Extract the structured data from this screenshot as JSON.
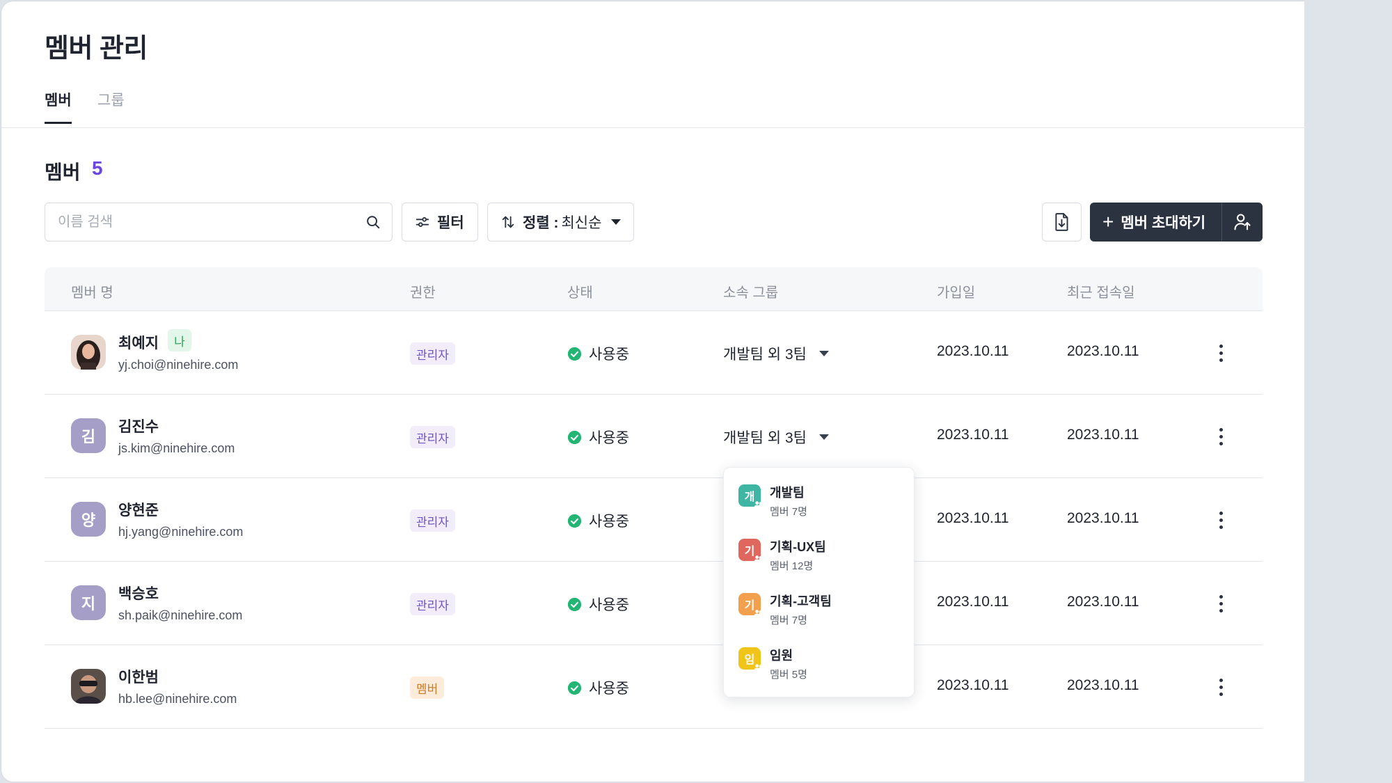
{
  "page": {
    "title": "멤버 관리"
  },
  "tabs": [
    {
      "label": "멤버",
      "active": true
    },
    {
      "label": "그룹",
      "active": false
    }
  ],
  "section": {
    "title": "멤버",
    "count": "5"
  },
  "toolbar": {
    "search_placeholder": "이름 검색",
    "filter_label": "필터",
    "sort_label": "정렬 :",
    "sort_value": "최신순",
    "invite_label": "멤버 초대하기"
  },
  "table": {
    "headers": [
      "멤버 명",
      "권한",
      "상태",
      "소속 그룹",
      "가입일",
      "최근 접속일"
    ],
    "rows": [
      {
        "name": "최예지",
        "badge": "나",
        "email": "yj.choi@ninehire.com",
        "avatar": "photo",
        "role": "관리자",
        "role_type": "admin",
        "status": "사용중",
        "group": "개발팀 외 3팀",
        "joined": "2023.10.11",
        "last_login": "2023.10.11"
      },
      {
        "name": "김진수",
        "email": "js.kim@ninehire.com",
        "avatar": "김",
        "role": "관리자",
        "role_type": "admin",
        "status": "사용중",
        "group": "개발팀 외 3팀",
        "joined": "2023.10.11",
        "last_login": "2023.10.11"
      },
      {
        "name": "양현준",
        "email": "hj.yang@ninehire.com",
        "avatar": "양",
        "role": "관리자",
        "role_type": "admin",
        "status": "사용중",
        "group": "",
        "joined": "2023.10.11",
        "last_login": "2023.10.11"
      },
      {
        "name": "백승호",
        "email": "sh.paik@ninehire.com",
        "avatar": "지",
        "role": "관리자",
        "role_type": "admin",
        "status": "사용중",
        "group": "",
        "joined": "2023.10.11",
        "last_login": "2023.10.11"
      },
      {
        "name": "이한범",
        "email": "hb.lee@ninehire.com",
        "avatar": "photo",
        "role": "멤버",
        "role_type": "member",
        "status": "사용중",
        "group": "",
        "joined": "2023.10.11",
        "last_login": "2023.10.11"
      }
    ]
  },
  "group_dropdown": {
    "items": [
      {
        "initial": "개",
        "name": "개발팀",
        "count": "멤버 7명",
        "color": "#3fb5a3"
      },
      {
        "initial": "기",
        "name": "기획-UX팀",
        "count": "멤버 12명",
        "color": "#e0675e"
      },
      {
        "initial": "기",
        "name": "기획-고객팀",
        "count": "멤버 7명",
        "color": "#f2a04e"
      },
      {
        "initial": "임",
        "name": "임원",
        "count": "멤버 5명",
        "color": "#f0c419"
      }
    ]
  },
  "colors": {
    "accent": "#6b46e0",
    "primary_button": "#2b3240",
    "status_active": "#22b573",
    "avatar_letter_bg": "#a59ec7"
  },
  "icons": {
    "search": "search-icon",
    "filter": "sliders-icon",
    "sort": "sort-arrows-icon",
    "export": "file-download-icon",
    "invite": "plus-icon",
    "bulk_invite": "user-upload-icon",
    "status": "check-circle-icon",
    "more": "more-vertical-icon"
  }
}
